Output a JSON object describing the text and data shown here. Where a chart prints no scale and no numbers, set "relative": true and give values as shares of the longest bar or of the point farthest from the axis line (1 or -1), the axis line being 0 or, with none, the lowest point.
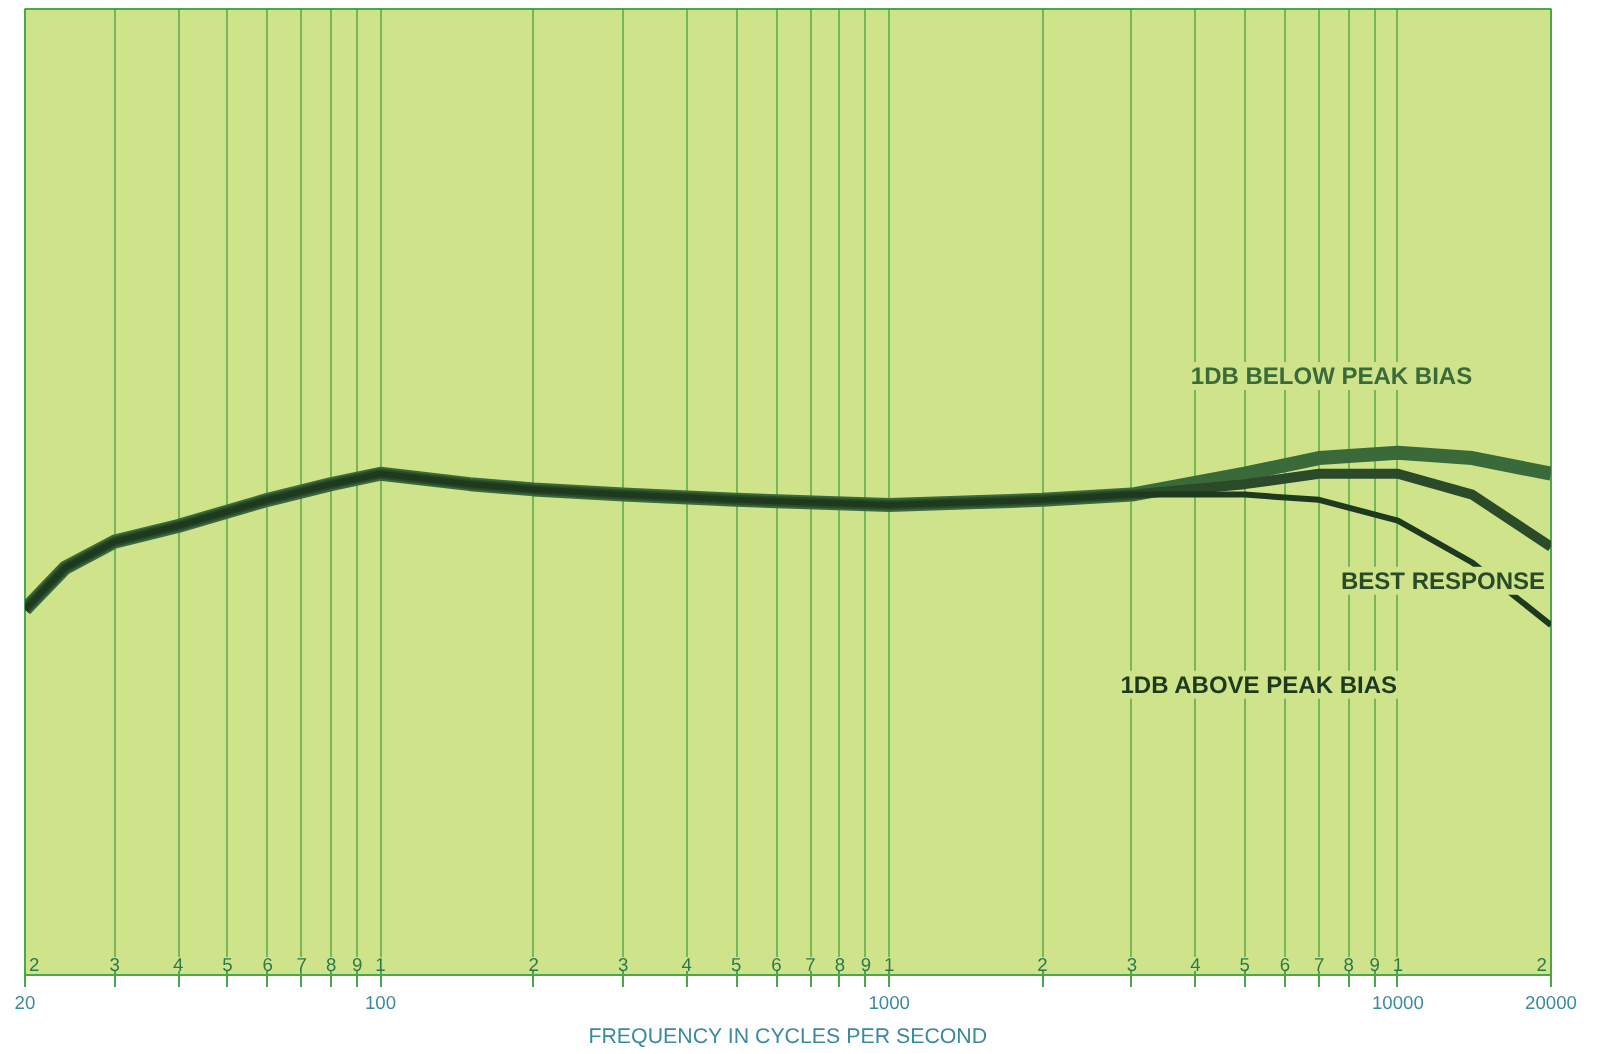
{
  "chart_data": {
    "type": "line",
    "relative": true,
    "xlabel": "FREQUENCY IN CYCLES PER SECOND",
    "log": "x",
    "grid": "x",
    "xlim": [
      20,
      20000
    ],
    "xticks": [
      20,
      {
        "value": 30,
        "label": null
      },
      {
        "value": 40,
        "label": null
      },
      {
        "value": 50,
        "label": null
      },
      {
        "value": 60,
        "label": null
      },
      {
        "value": 70,
        "label": null
      },
      {
        "value": 80,
        "label": null
      },
      {
        "value": 90,
        "label": null
      },
      100,
      {
        "value": 200,
        "label": null
      },
      {
        "value": 300,
        "label": null
      },
      {
        "value": 400,
        "label": null
      },
      {
        "value": 500,
        "label": null
      },
      {
        "value": 600,
        "label": null
      },
      {
        "value": 700,
        "label": null
      },
      {
        "value": 800,
        "label": null
      },
      {
        "value": 900,
        "label": null
      },
      1000,
      {
        "value": 2000,
        "label": null
      },
      {
        "value": 3000,
        "label": null
      },
      {
        "value": 4000,
        "label": null
      },
      {
        "value": 5000,
        "label": null
      },
      {
        "value": 6000,
        "label": null
      },
      {
        "value": 7000,
        "label": null
      },
      {
        "value": 8000,
        "label": null
      },
      {
        "value": 9000,
        "label": null
      },
      10000,
      20000
    ],
    "annotations": [
      "2",
      "3",
      "4",
      "5",
      "6",
      "7",
      "8",
      "9",
      "1",
      "2",
      "3",
      "4",
      "5",
      "6",
      "7",
      "8",
      "9",
      "1",
      "2",
      "3",
      "4",
      "5",
      "6",
      "7",
      "8",
      "9",
      "1",
      "2"
    ],
    "x": [
      20,
      24,
      30,
      40,
      60,
      80,
      100,
      150,
      200,
      300,
      500,
      1000,
      2000,
      3000,
      5000,
      7000,
      10000,
      14000,
      20000
    ],
    "line_style": "solid",
    "marker": "none",
    "series": [
      {
        "name": "1DB BELOW PEAK BIAS",
        "color": "#3a6a3a",
        "values": [
          0.7,
          0.78,
          0.83,
          0.86,
          0.91,
          0.94,
          0.96,
          0.94,
          0.93,
          0.92,
          0.91,
          0.9,
          0.91,
          0.92,
          0.96,
          0.99,
          1.0,
          0.99,
          0.96
        ]
      },
      {
        "name": "BEST RESPONSE",
        "color": "#2a4a2a",
        "values": [
          0.7,
          0.78,
          0.83,
          0.86,
          0.91,
          0.94,
          0.96,
          0.94,
          0.93,
          0.92,
          0.91,
          0.9,
          0.91,
          0.92,
          0.94,
          0.96,
          0.96,
          0.92,
          0.82
        ]
      },
      {
        "name": "1DB ABOVE PEAK BIAS",
        "color": "#1e3a1e",
        "values": [
          0.7,
          0.78,
          0.83,
          0.86,
          0.91,
          0.94,
          0.96,
          0.94,
          0.93,
          0.92,
          0.91,
          0.9,
          0.91,
          0.92,
          0.92,
          0.91,
          0.87,
          0.79,
          0.67
        ]
      }
    ]
  }
}
